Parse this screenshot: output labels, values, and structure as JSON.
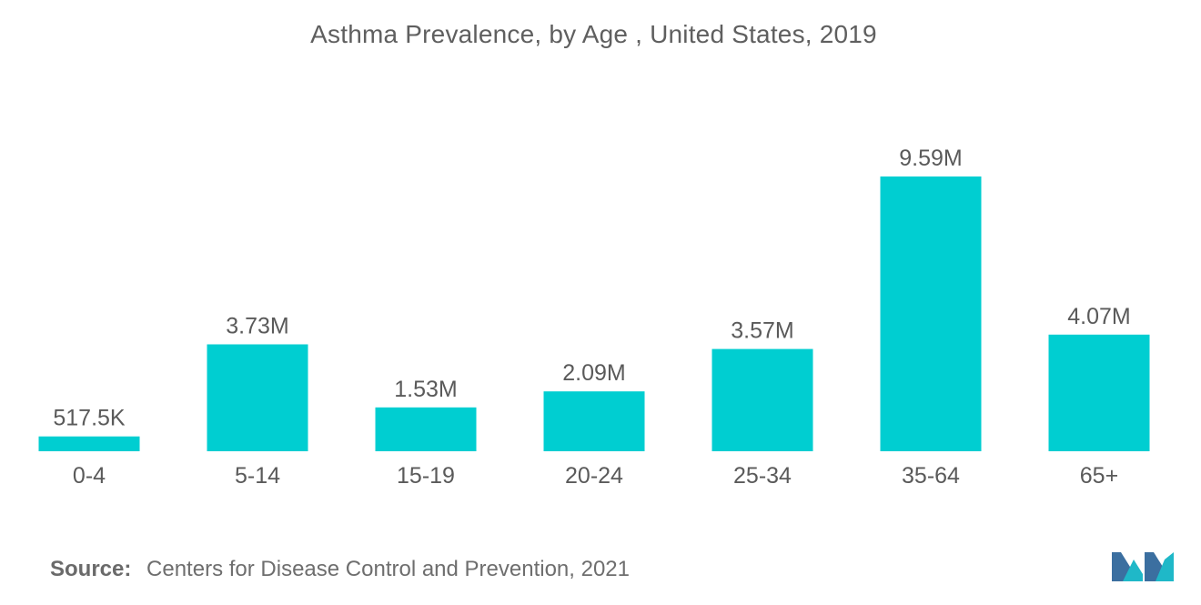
{
  "chart_data": {
    "type": "bar",
    "title": "Asthma Prevalence, by Age , United States, 2019",
    "xlabel": "",
    "ylabel": "",
    "categories": [
      "0-4",
      "5-14",
      "15-19",
      "20-24",
      "25-34",
      "35-64",
      "65+"
    ],
    "values": [
      0.5175,
      3.73,
      1.53,
      2.09,
      3.57,
      9.59,
      4.07
    ],
    "value_labels": [
      "517.5K",
      "3.73M",
      "1.53M",
      "2.09M",
      "3.57M",
      "9.59M",
      "4.07M"
    ],
    "units": "millions",
    "ylim": [
      0,
      9.59
    ],
    "grid": false,
    "legend": "none",
    "bar_color": "#00ced1"
  },
  "footer": {
    "source_label": "Source:",
    "source_text": "Centers for Disease Control and Prevention, 2021"
  },
  "brand": {
    "logo_icon": "mordor-intelligence-logo-icon",
    "colors": [
      "#3b6fa0",
      "#1fb8c8"
    ]
  },
  "colors": {
    "title": "#5f5f5f",
    "labels": "#5a5a5a",
    "bar": "#00ced1"
  }
}
